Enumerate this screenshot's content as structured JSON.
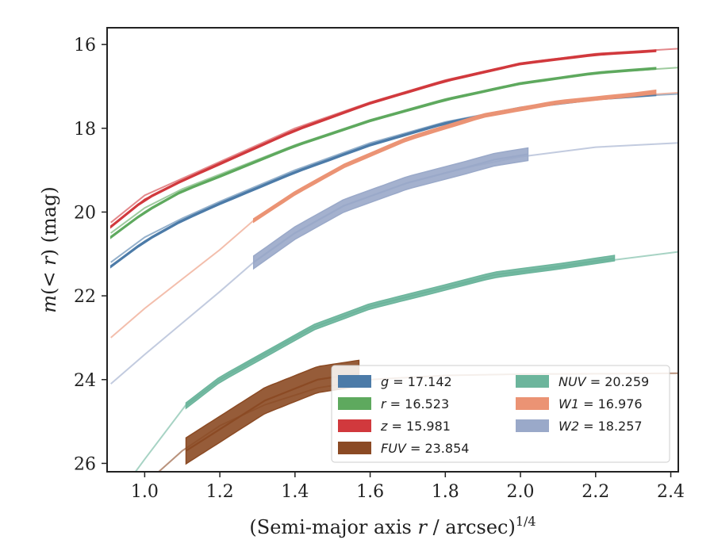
{
  "chart_data": {
    "type": "line",
    "title": "",
    "xlabel": "(Semi-major axis r / arcsec)",
    "xlabel_parts": {
      "pre": "(Semi-major axis ",
      "var": "r",
      "post": " / arcsec)",
      "sup": "1/4"
    },
    "ylabel": "m(< r) (mag)",
    "ylabel_parts": {
      "var": "m",
      "mid": "(< ",
      "var2": "r",
      "post": ") (mag)"
    },
    "xlim": [
      0.9,
      2.42
    ],
    "ylim": [
      26.2,
      15.6
    ],
    "y_inverted": true,
    "xticks": [
      "1.0",
      "1.2",
      "1.4",
      "1.6",
      "1.8",
      "2.0",
      "2.2",
      "2.4"
    ],
    "yticks": [
      "16",
      "18",
      "20",
      "22",
      "24",
      "26"
    ],
    "grid": false,
    "legend_position": "lower-right",
    "series": [
      {
        "name": "g = 17.142",
        "label_var": "g",
        "label_val": "= 17.142",
        "color": "#4c7ba8",
        "model": [
          [
            0.91,
            21.2
          ],
          [
            1.0,
            20.6
          ],
          [
            1.1,
            20.15
          ],
          [
            1.2,
            19.75
          ],
          [
            1.4,
            19.0
          ],
          [
            1.6,
            18.35
          ],
          [
            1.8,
            17.85
          ],
          [
            2.0,
            17.5
          ],
          [
            2.2,
            17.28
          ],
          [
            2.42,
            17.18
          ]
        ],
        "data": [
          [
            0.91,
            21.3
          ],
          [
            1.0,
            20.7
          ],
          [
            1.1,
            20.2
          ],
          [
            1.2,
            19.8
          ],
          [
            1.4,
            19.05
          ],
          [
            1.6,
            18.4
          ],
          [
            1.8,
            17.88
          ],
          [
            2.0,
            17.52
          ],
          [
            2.2,
            17.3
          ],
          [
            2.36,
            17.2
          ]
        ],
        "data_start": 0.91,
        "data_end": 2.36,
        "band": 0.04
      },
      {
        "name": "r = 16.523",
        "label_var": "r",
        "label_val": "= 16.523",
        "color": "#5ea95e",
        "model": [
          [
            0.91,
            20.5
          ],
          [
            1.0,
            19.9
          ],
          [
            1.1,
            19.45
          ],
          [
            1.2,
            19.1
          ],
          [
            1.4,
            18.4
          ],
          [
            1.6,
            17.8
          ],
          [
            1.8,
            17.3
          ],
          [
            2.0,
            16.92
          ],
          [
            2.2,
            16.68
          ],
          [
            2.42,
            16.55
          ]
        ],
        "data": [
          [
            0.91,
            20.6
          ],
          [
            1.0,
            20.0
          ],
          [
            1.1,
            19.5
          ],
          [
            1.2,
            19.15
          ],
          [
            1.4,
            18.42
          ],
          [
            1.6,
            17.82
          ],
          [
            1.8,
            17.32
          ],
          [
            2.0,
            16.93
          ],
          [
            2.2,
            16.68
          ],
          [
            2.36,
            16.57
          ]
        ],
        "data_start": 0.91,
        "data_end": 2.36,
        "band": 0.04
      },
      {
        "name": "z = 15.981",
        "label_var": "z",
        "label_val": "= 15.981",
        "color": "#d1393d",
        "model": [
          [
            0.91,
            20.25
          ],
          [
            1.0,
            19.6
          ],
          [
            1.1,
            19.2
          ],
          [
            1.2,
            18.8
          ],
          [
            1.4,
            18.0
          ],
          [
            1.6,
            17.38
          ],
          [
            1.8,
            16.85
          ],
          [
            2.0,
            16.45
          ],
          [
            2.2,
            16.22
          ],
          [
            2.42,
            16.1
          ]
        ],
        "data": [
          [
            0.91,
            20.35
          ],
          [
            1.0,
            19.7
          ],
          [
            1.1,
            19.25
          ],
          [
            1.2,
            18.85
          ],
          [
            1.4,
            18.05
          ],
          [
            1.6,
            17.4
          ],
          [
            1.8,
            16.87
          ],
          [
            2.0,
            16.46
          ],
          [
            2.2,
            16.24
          ],
          [
            2.36,
            16.15
          ]
        ],
        "data_start": 0.91,
        "data_end": 2.36,
        "band": 0.04
      },
      {
        "name": "FUV = 23.854",
        "label_var": "FUV",
        "label_val": "= 23.854",
        "color": "#8b4a24",
        "model": [
          [
            0.91,
            27.5
          ],
          [
            1.0,
            26.5
          ],
          [
            1.1,
            25.7
          ],
          [
            1.2,
            25.1
          ],
          [
            1.32,
            24.6
          ],
          [
            1.46,
            24.2
          ],
          [
            1.6,
            24.0
          ],
          [
            1.8,
            23.9
          ],
          [
            2.0,
            23.87
          ],
          [
            2.2,
            23.86
          ],
          [
            2.42,
            23.85
          ]
        ],
        "data": [
          [
            1.11,
            25.7
          ],
          [
            1.32,
            24.5
          ],
          [
            1.46,
            24.0
          ],
          [
            1.57,
            23.85
          ]
        ],
        "data_start": 1.11,
        "data_end": 1.57,
        "band": 0.62
      },
      {
        "name": "NUV = 20.259",
        "label_var": "NUV",
        "label_val": "= 20.259",
        "color": "#6cb59c",
        "model": [
          [
            0.91,
            27.0
          ],
          [
            1.0,
            25.9
          ],
          [
            1.11,
            24.6
          ],
          [
            1.2,
            24.0
          ],
          [
            1.32,
            23.35
          ],
          [
            1.45,
            22.75
          ],
          [
            1.6,
            22.25
          ],
          [
            1.8,
            21.8
          ],
          [
            2.0,
            21.45
          ],
          [
            2.2,
            21.2
          ],
          [
            2.42,
            20.95
          ]
        ],
        "data": [
          [
            1.11,
            24.62
          ],
          [
            1.2,
            24.0
          ],
          [
            1.32,
            23.4
          ],
          [
            1.45,
            22.75
          ],
          [
            1.6,
            22.25
          ],
          [
            1.8,
            21.8
          ],
          [
            1.93,
            21.5
          ],
          [
            2.1,
            21.3
          ],
          [
            2.25,
            21.1
          ]
        ],
        "data_start": 1.11,
        "data_end": 2.25,
        "band": 0.13
      },
      {
        "name": "W1 = 16.976",
        "label_var": "W1",
        "label_val": "= 16.976",
        "color": "#eb9374",
        "model": [
          [
            0.91,
            23.0
          ],
          [
            1.0,
            22.3
          ],
          [
            1.1,
            21.6
          ],
          [
            1.2,
            20.9
          ],
          [
            1.29,
            20.2
          ],
          [
            1.4,
            19.55
          ],
          [
            1.53,
            18.9
          ],
          [
            1.7,
            18.25
          ],
          [
            1.9,
            17.7
          ],
          [
            2.1,
            17.38
          ],
          [
            2.3,
            17.22
          ],
          [
            2.42,
            17.15
          ]
        ],
        "data": [
          [
            1.29,
            20.2
          ],
          [
            1.4,
            19.55
          ],
          [
            1.53,
            18.9
          ],
          [
            1.7,
            18.25
          ],
          [
            1.9,
            17.7
          ],
          [
            2.1,
            17.38
          ],
          [
            2.3,
            17.2
          ],
          [
            2.36,
            17.13
          ]
        ],
        "data_start": 1.29,
        "data_end": 2.36,
        "band": 0.08
      },
      {
        "name": "W2 = 18.257",
        "label_var": "W2",
        "label_val": "= 18.257",
        "color": "#9aa9c9",
        "model": [
          [
            0.91,
            24.1
          ],
          [
            1.0,
            23.4
          ],
          [
            1.1,
            22.65
          ],
          [
            1.2,
            21.9
          ],
          [
            1.29,
            21.2
          ],
          [
            1.4,
            20.5
          ],
          [
            1.53,
            19.85
          ],
          [
            1.7,
            19.3
          ],
          [
            1.85,
            18.95
          ],
          [
            2.0,
            18.68
          ],
          [
            2.2,
            18.45
          ],
          [
            2.42,
            18.35
          ]
        ],
        "data": [
          [
            1.29,
            21.2
          ],
          [
            1.4,
            20.5
          ],
          [
            1.53,
            19.85
          ],
          [
            1.7,
            19.3
          ],
          [
            1.85,
            18.95
          ],
          [
            1.93,
            18.75
          ],
          [
            2.02,
            18.62
          ]
        ],
        "data_start": 1.29,
        "data_end": 2.02,
        "band": 0.3
      }
    ]
  }
}
